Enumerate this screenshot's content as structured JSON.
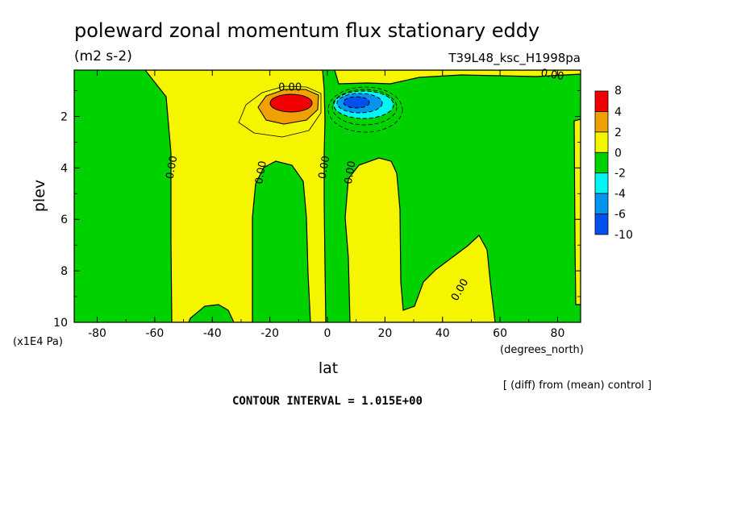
{
  "chart_data": {
    "type": "heatmap",
    "title": "poleward zonal momentum flux stationary eddy",
    "units": "(m2 s-2)",
    "run_label": "T39L48_ksc_H1998pa",
    "xlabel": "lat",
    "x_unit_label": "(degrees_north)",
    "ylabel": "plev",
    "y_unit_label": "(x1E4 Pa)",
    "xlim": [
      -88,
      88
    ],
    "ylim": [
      0.2,
      10
    ],
    "y_inverted": true,
    "x_ticks": [
      -80,
      -60,
      -40,
      -20,
      0,
      20,
      40,
      60,
      80
    ],
    "x_tick_labels": [
      "-80",
      "-60",
      "-40",
      "-20",
      "0",
      "20",
      "40",
      "60",
      "80"
    ],
    "y_ticks": [
      2,
      4,
      6,
      8,
      10
    ],
    "y_tick_labels": [
      "2",
      "4",
      "6",
      "8",
      "10"
    ],
    "colorbar_levels": [
      "8",
      "4",
      "2",
      "0",
      "-2",
      "-4",
      "-6",
      "-10"
    ],
    "colorbar_colors": [
      "#f00000",
      "#f0a000",
      "#f5f500",
      "#00d200",
      "#00f5f5",
      "#0096f0",
      "#0050f0"
    ],
    "contour_labels": [
      {
        "text": "0.00",
        "lat": -13,
        "plev": 1.0
      },
      {
        "text": "0.00",
        "lat": -53,
        "plev": 4.0
      },
      {
        "text": "0.00",
        "lat": -22,
        "plev": 4.2
      },
      {
        "text": "0.00",
        "lat": 0,
        "plev": 4.0
      },
      {
        "text": "0.00",
        "lat": 9,
        "plev": 4.2
      },
      {
        "text": "0.00",
        "lat": 47,
        "plev": 8.8
      },
      {
        "text": "0.00",
        "lat": 78,
        "plev": 0.5
      }
    ],
    "extrema": [
      {
        "lat": -12,
        "plev": 1.5,
        "value_range": "4 to 8",
        "sign": "positive"
      },
      {
        "lat": 11,
        "plev": 1.5,
        "value_range": "-6 to -10",
        "sign": "negative"
      }
    ],
    "contour_interval_text": "CONTOUR INTERVAL = 1.015E+00",
    "footnote": "[ (diff) from (mean) control ]"
  }
}
